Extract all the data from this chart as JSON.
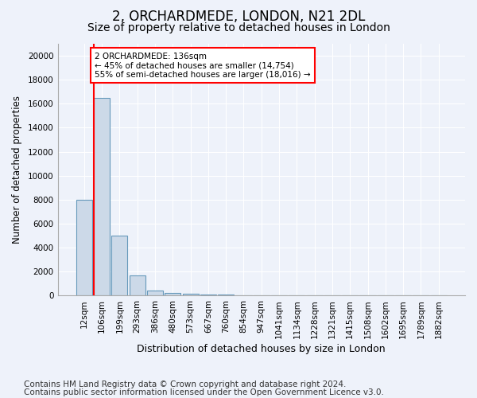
{
  "title": "2, ORCHARDMEDE, LONDON, N21 2DL",
  "subtitle": "Size of property relative to detached houses in London",
  "xlabel": "Distribution of detached houses by size in London",
  "ylabel": "Number of detached properties",
  "categories": [
    "12sqm",
    "106sqm",
    "199sqm",
    "293sqm",
    "386sqm",
    "480sqm",
    "573sqm",
    "667sqm",
    "760sqm",
    "854sqm",
    "947sqm",
    "1041sqm",
    "1134sqm",
    "1228sqm",
    "1321sqm",
    "1415sqm",
    "1508sqm",
    "1602sqm",
    "1695sqm",
    "1789sqm",
    "1882sqm"
  ],
  "values": [
    8000,
    16500,
    5000,
    1700,
    400,
    200,
    150,
    100,
    80,
    50,
    30,
    0,
    0,
    0,
    0,
    0,
    0,
    0,
    0,
    0,
    0
  ],
  "bar_color": "#ccd9e8",
  "bar_edge_color": "#6699bb",
  "red_line_index": 1,
  "annotation_text": "2 ORCHARDMEDE: 136sqm\n← 45% of detached houses are smaller (14,754)\n55% of semi-detached houses are larger (18,016) →",
  "annotation_box_color": "white",
  "annotation_box_edge": "red",
  "ylim": [
    0,
    21000
  ],
  "yticks": [
    0,
    2000,
    4000,
    6000,
    8000,
    10000,
    12000,
    14000,
    16000,
    18000,
    20000
  ],
  "footer1": "Contains HM Land Registry data © Crown copyright and database right 2024.",
  "footer2": "Contains public sector information licensed under the Open Government Licence v3.0.",
  "background_color": "#eef2fa",
  "grid_color": "#ffffff",
  "title_fontsize": 12,
  "subtitle_fontsize": 10,
  "tick_fontsize": 7.5,
  "footer_fontsize": 7.5
}
